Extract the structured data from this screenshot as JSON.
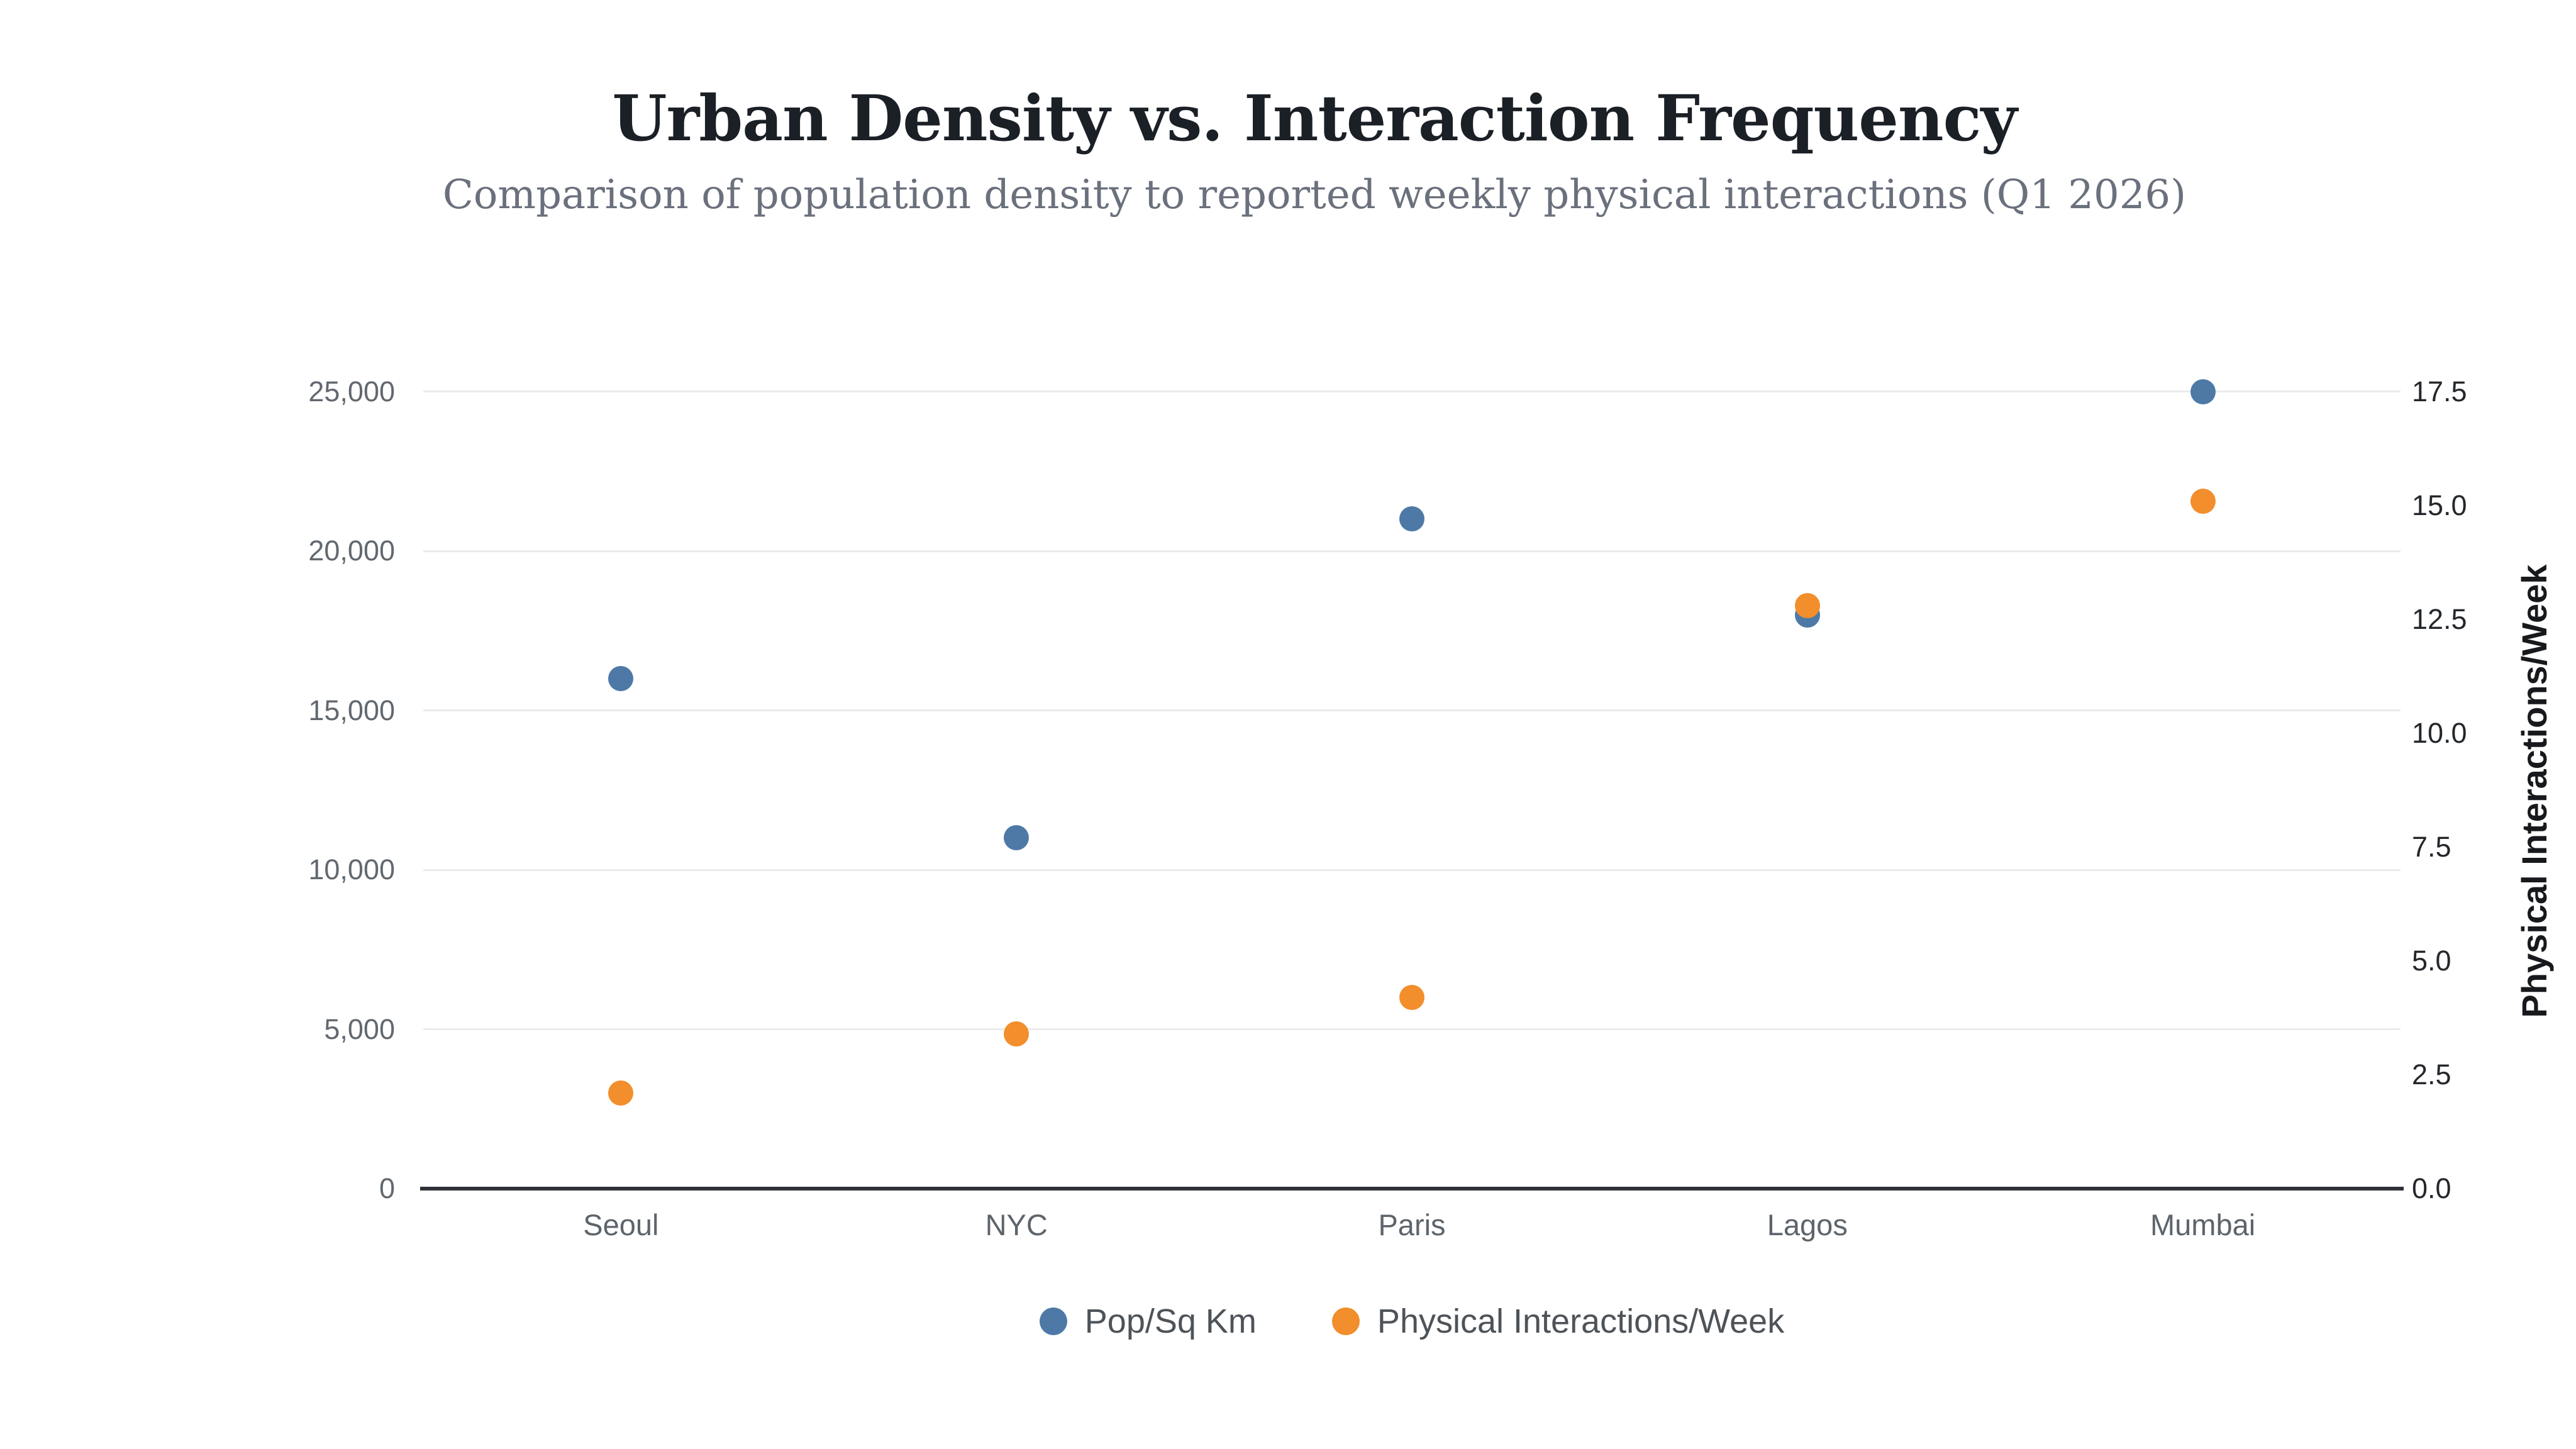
{
  "header": {
    "title": "Urban Density vs. Interaction Frequency",
    "subtitle": "Comparison of population density to reported weekly physical interactions (Q1 2026)"
  },
  "colors": {
    "blue_series": "#4e79a7",
    "orange_series": "#f28e2b",
    "gridline": "#e9ebee",
    "axis_line": "#2e3137",
    "title_text": "#1b1f26",
    "subtitle_text": "#6a707c",
    "left_tick_text": "#62686f",
    "right_tick_text": "#24272b",
    "category_tick_text": "#5d646b",
    "legend_text": "#4d5359"
  },
  "chart_data": {
    "type": "scatter",
    "title": "Urban Density vs. Interaction Frequency",
    "subtitle": "Comparison of population density to reported weekly physical interactions (Q1 2026)",
    "categories": [
      "Seoul",
      "NYC",
      "Paris",
      "Lagos",
      "Mumbai"
    ],
    "series": [
      {
        "name": "Pop/Sq Km",
        "axis": "left",
        "color": "#4e79a7",
        "values": [
          16000,
          11000,
          21000,
          18000,
          25000
        ]
      },
      {
        "name": "Physical Interactions/Week",
        "axis": "right",
        "color": "#f28e2b",
        "values": [
          2.1,
          3.4,
          4.2,
          12.8,
          15.1
        ]
      }
    ],
    "left_axis": {
      "max": 25000,
      "ticks": [
        0,
        5000,
        10000,
        15000,
        20000,
        25000
      ],
      "tick_labels": [
        "0",
        "5,000",
        "10,000",
        "15,000",
        "20,000",
        "25,000"
      ]
    },
    "right_axis": {
      "title": "Physical Interactions/Week",
      "max": 17.5,
      "ticks": [
        0,
        2.5,
        5,
        7.5,
        10,
        12.5,
        15,
        17.5
      ],
      "tick_labels": [
        "0.0",
        "2.5",
        "5.0",
        "7.5",
        "10.0",
        "12.5",
        "15.0",
        "17.5"
      ]
    },
    "grid": true,
    "legend_position": "bottom"
  }
}
